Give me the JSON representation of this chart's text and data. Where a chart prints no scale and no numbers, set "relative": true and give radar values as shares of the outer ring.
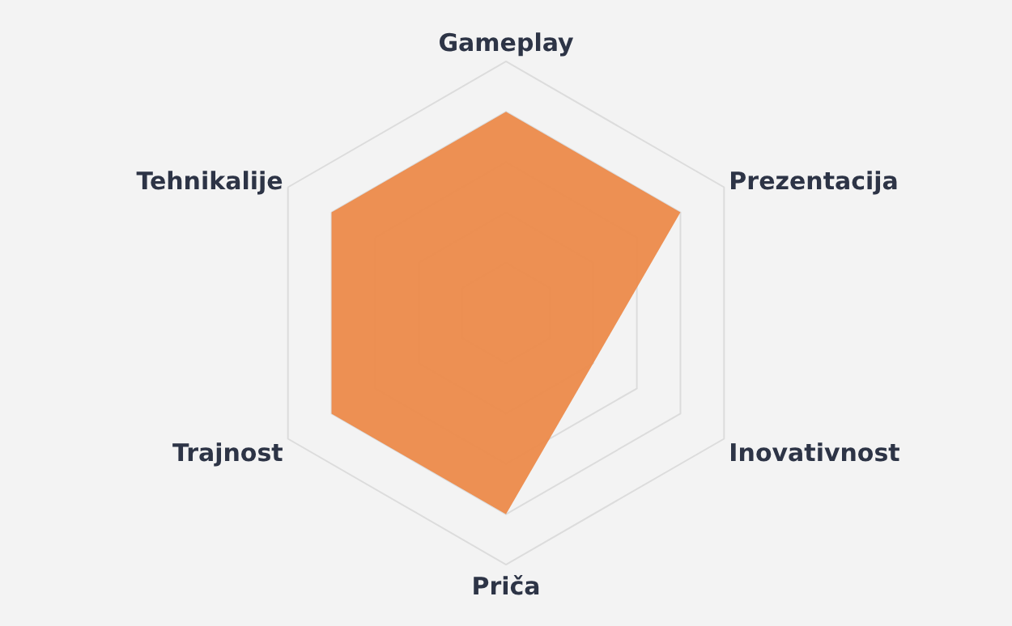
{
  "chart_data": {
    "type": "radar",
    "relative": true,
    "grid": true,
    "categories": [
      "Gameplay",
      "Prezentacija",
      "Inovativnost",
      "Priča",
      "Trajnost",
      "Tehnikalije"
    ],
    "series": [
      {
        "color": "#ec8a4a",
        "values": [
          0.8,
          0.8,
          0.4,
          0.8,
          0.8,
          0.8
        ]
      }
    ]
  }
}
